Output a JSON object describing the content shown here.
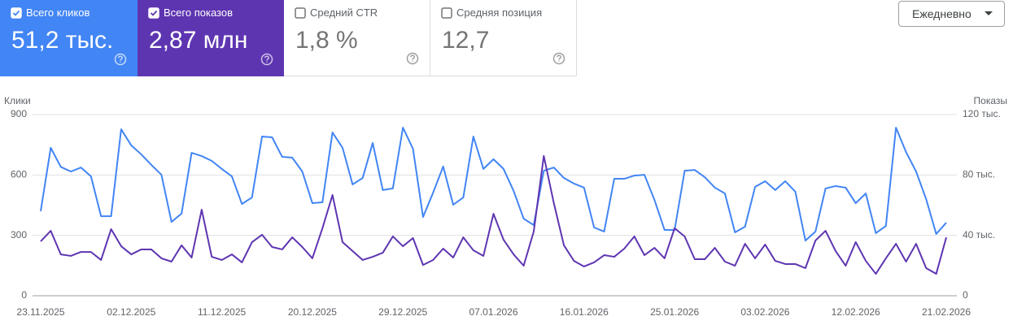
{
  "metrics": [
    {
      "label": "Всего кликов",
      "value": "51,2 тыс.",
      "checked": true,
      "color": "#4285f4"
    },
    {
      "label": "Всего показов",
      "value": "2,87 млн",
      "checked": true,
      "color": "#5e35b1"
    },
    {
      "label": "Средний CTR",
      "value": "1,8 %",
      "checked": false
    },
    {
      "label": "Средняя позиция",
      "value": "12,7",
      "checked": false
    }
  ],
  "period_select": "Ежедневно",
  "chart_data": {
    "type": "line",
    "y_label": "Клики",
    "y2_label": "Показы",
    "categories": [
      "23.11.2025",
      null,
      null,
      null,
      null,
      null,
      null,
      null,
      null,
      "02.12.2025",
      null,
      null,
      null,
      null,
      null,
      null,
      null,
      null,
      "11.12.2025",
      null,
      null,
      null,
      null,
      null,
      null,
      null,
      null,
      "20.12.2025",
      null,
      null,
      null,
      null,
      null,
      null,
      null,
      null,
      "29.12.2025",
      null,
      null,
      null,
      null,
      null,
      null,
      null,
      null,
      "07.01.2026",
      null,
      null,
      null,
      null,
      null,
      null,
      null,
      null,
      "16.01.2026",
      null,
      null,
      null,
      null,
      null,
      null,
      null,
      null,
      "25.01.2026",
      null,
      null,
      null,
      null,
      null,
      null,
      null,
      null,
      "03.02.2026",
      null,
      null,
      null,
      null,
      null,
      null,
      null,
      null,
      "12.02.2026",
      null,
      null,
      null,
      null,
      null,
      null,
      null,
      null,
      "21.02.2026"
    ],
    "ylim": [
      0,
      900
    ],
    "yticks": [
      0,
      300,
      600,
      900
    ],
    "y2lim": [
      0,
      120000
    ],
    "y2ticks": [
      0,
      {
        "value": 40000,
        "label": "40 тыс."
      },
      {
        "value": 80000,
        "label": "80 тыс."
      },
      {
        "value": 120000,
        "label": "120 тыс."
      }
    ],
    "grid": true,
    "series": [
      {
        "color": "#4285f4",
        "values": [
          420,
          735,
          640,
          617,
          637,
          593,
          395,
          395,
          827,
          747,
          702,
          650,
          601,
          367,
          408,
          710,
          694,
          670,
          630,
          593,
          456,
          488,
          791,
          787,
          690,
          686,
          617,
          460,
          464,
          811,
          735,
          553,
          585,
          759,
          525,
          533,
          835,
          730,
          391,
          512,
          642,
          452,
          488,
          791,
          630,
          678,
          630,
          521,
          383,
          351,
          621,
          637,
          585,
          557,
          537,
          339,
          319,
          581,
          581,
          597,
          601,
          476,
          327,
          327,
          621,
          625,
          589,
          537,
          508,
          315,
          343,
          541,
          569,
          525,
          569,
          517,
          274,
          319,
          533,
          545,
          537,
          460,
          508,
          311,
          347,
          835,
          714,
          617,
          480,
          307,
          363
        ]
      },
      {
        "color": "#5e35b1",
        "axis": "y2",
        "values": [
          36000,
          43000,
          27400,
          26400,
          29000,
          29000,
          23700,
          44100,
          32800,
          27400,
          30700,
          30700,
          24800,
          22600,
          33400,
          25300,
          57000,
          25800,
          23700,
          27400,
          22100,
          35500,
          40400,
          32300,
          30700,
          38700,
          32300,
          24800,
          44700,
          66700,
          35500,
          29600,
          23700,
          25800,
          28500,
          39300,
          32800,
          38200,
          20400,
          23700,
          31200,
          25300,
          38700,
          30100,
          26400,
          54300,
          37100,
          27400,
          19900,
          42500,
          92600,
          61300,
          33400,
          23100,
          19400,
          22100,
          26900,
          25800,
          31200,
          39300,
          26900,
          31700,
          24800,
          44700,
          39300,
          24200,
          24200,
          31700,
          22600,
          19900,
          34400,
          24800,
          33900,
          23100,
          21000,
          21000,
          18300,
          36600,
          43000,
          29600,
          19900,
          35500,
          23100,
          14500,
          24800,
          34400,
          22600,
          34400,
          18300,
          14500,
          38700
        ]
      }
    ]
  }
}
